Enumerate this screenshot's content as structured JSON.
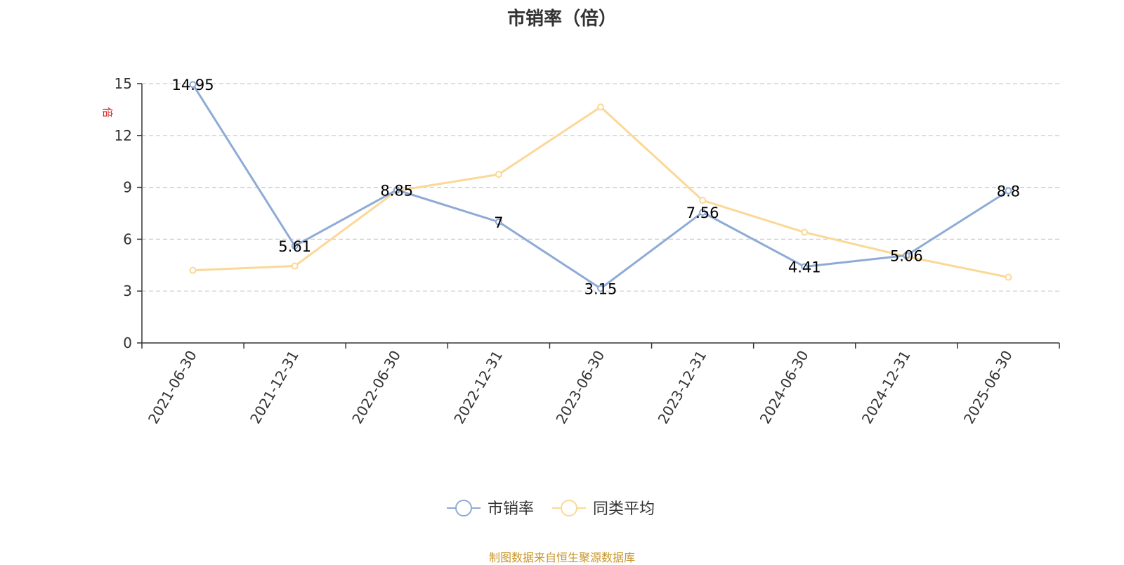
{
  "chart_data": {
    "type": "line",
    "title": "市销率（倍）",
    "ylabel": "倍",
    "xlabel": "",
    "categories": [
      "2021-06-30",
      "2021-12-31",
      "2022-06-30",
      "2022-12-31",
      "2023-06-30",
      "2023-12-31",
      "2024-06-30",
      "2024-12-31",
      "2025-06-30"
    ],
    "ylim": [
      0,
      15
    ],
    "yticks": [
      0,
      3,
      6,
      9,
      12,
      15
    ],
    "grid": "horizontal dashed",
    "legend_position": "bottom-center",
    "series": [
      {
        "name": "市销率",
        "color": "#8eabd6",
        "values": [
          14.95,
          5.61,
          8.85,
          7,
          3.15,
          7.56,
          4.41,
          5.06,
          8.8
        ],
        "labels": [
          "14.95",
          "5.61",
          "8.85",
          "7",
          "3.15",
          "7.56",
          "4.41",
          "5.06",
          "8.8"
        ]
      },
      {
        "name": "同类平均",
        "color": "#fbd896",
        "values": [
          4.2,
          4.45,
          8.8,
          9.75,
          13.65,
          8.25,
          6.4,
          5.0,
          3.8
        ]
      }
    ]
  },
  "source": "制图数据来自恒生聚源数据库",
  "colors": {
    "axis": "#333333",
    "grid": "#cccccc",
    "ylabel": "#e02020",
    "source": "#c8962c"
  }
}
